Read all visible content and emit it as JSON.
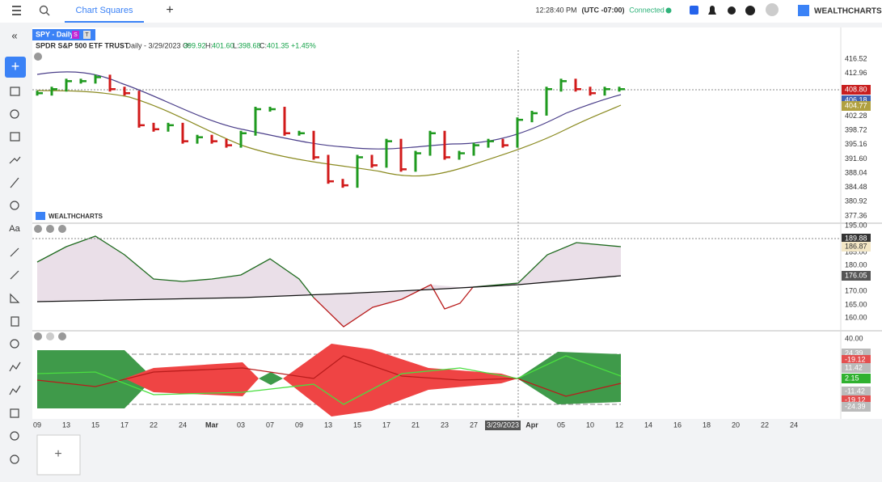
{
  "topbar": {
    "tab": "Chart Squares",
    "time": "12:28:40 PM",
    "timezone": "(UTC -07:00)",
    "status": "Connected",
    "brand": "WEALTHCHARTS"
  },
  "symbol_tab": {
    "label": "SPY - Daily",
    "badge_s": "S",
    "badge_t": "T"
  },
  "header": {
    "name": "SPDR S&P 500 ETF TRUST",
    "info": "- Daily - 3/29/2023 O:",
    "open": "399.92",
    "high_label": "H:",
    "high": "401.60",
    "low_label": "L:",
    "low": "398.68",
    "close_label": "C:",
    "close": "401.35",
    "change": "+1.45%"
  },
  "chart": {
    "watermark": "WEALTHCHARTS",
    "closes": [
      408,
      409,
      411,
      411,
      412,
      409,
      408,
      400,
      399,
      400,
      396,
      397,
      396,
      395,
      398,
      404,
      404,
      398,
      398,
      392,
      386,
      385,
      392,
      390,
      396,
      389,
      393,
      398,
      392,
      393,
      395,
      396,
      395,
      401.35,
      403,
      409,
      411,
      409,
      408,
      409,
      409
    ],
    "yticks": [
      416.52,
      412.96,
      402.28,
      398.72,
      395.16,
      {
        "value": 391.6,
        "label": "391.60"
      },
      388.04,
      384.48,
      380.92,
      377.36
    ],
    "price_badges": [
      "408.80",
      "406.18",
      "404.77"
    ],
    "dates": [
      "09",
      "13",
      "15",
      "17",
      "22",
      "24",
      "Mar",
      "03",
      "07",
      "09",
      "13",
      "15",
      "17",
      "21",
      "23",
      "27",
      "3/29/2023",
      "Apr",
      "05",
      "10",
      "12",
      "14",
      "16",
      "18",
      "20",
      "22",
      "24"
    ]
  },
  "panel2": {
    "ticks": [
      "195.00",
      "185.00",
      "180.00",
      "175.00",
      "170.00",
      "165.00",
      "160.00"
    ],
    "badges": [
      "189.88",
      "186.87",
      "176.05"
    ]
  },
  "panel3": {
    "ticks": [
      "40.00"
    ],
    "badges": [
      "24.39",
      "-19.12",
      "11.42",
      "2.15",
      "-11.42",
      "-19.12",
      "-24.39"
    ]
  }
}
